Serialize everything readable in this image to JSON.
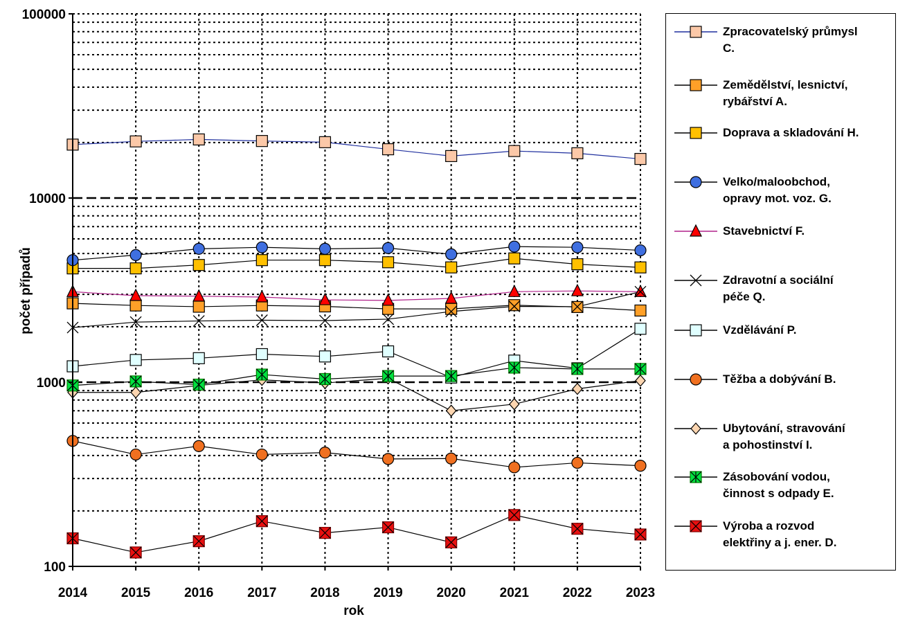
{
  "chart_data": {
    "type": "line",
    "xlabel": "rok",
    "ylabel": "počet případů",
    "yscale": "log",
    "ylim": [
      100,
      100000
    ],
    "yticks": [
      "100",
      "1000",
      "10000",
      "100000"
    ],
    "grid": true,
    "legend_position": "right",
    "categories": [
      "2014",
      "2015",
      "2016",
      "2017",
      "2018",
      "2019",
      "2020",
      "2021",
      "2022",
      "2023"
    ],
    "series": [
      {
        "name": "Zpracovatelský průmysl C.",
        "marker": "square",
        "color": "#fbc8a8",
        "line": "#1f2f9e",
        "values": [
          19500,
          20300,
          20800,
          20400,
          20100,
          18400,
          16900,
          18000,
          17500,
          16300
        ]
      },
      {
        "name": "Zemědělství, lesnictví, rybářství A.",
        "marker": "square",
        "color": "#ffa028",
        "line": "#000000",
        "values": [
          2680,
          2610,
          2570,
          2610,
          2580,
          2500,
          2500,
          2620,
          2560,
          2450
        ]
      },
      {
        "name": "Doprava a skladování H.",
        "marker": "square",
        "color": "#ffc000",
        "line": "#000000",
        "values": [
          4150,
          4150,
          4330,
          4600,
          4600,
          4480,
          4200,
          4700,
          4370,
          4200
        ]
      },
      {
        "name": "Velko/maloobchod, opravy mot. voz. G.",
        "marker": "circle",
        "color": "#3f6fe0",
        "line": "#000000",
        "values": [
          4600,
          4900,
          5300,
          5400,
          5300,
          5350,
          4950,
          5450,
          5400,
          5200
        ]
      },
      {
        "name": "Stavebnictví F.",
        "marker": "triangle",
        "color": "#ff0000",
        "line": "#b0208a",
        "values": [
          3100,
          2950,
          2930,
          2900,
          2800,
          2780,
          2850,
          3100,
          3130,
          3100
        ]
      },
      {
        "name": "Zdravotní a sociální péče Q.",
        "marker": "x",
        "color": "#d8f5d8",
        "line": "#000000",
        "values": [
          1980,
          2120,
          2150,
          2170,
          2160,
          2200,
          2420,
          2580,
          2570,
          3100
        ]
      },
      {
        "name": "Vzdělávání P.",
        "marker": "square",
        "color": "#e0ffff",
        "line": "#000000",
        "values": [
          1220,
          1320,
          1350,
          1420,
          1380,
          1470,
          1060,
          1310,
          1190,
          1950
        ]
      },
      {
        "name": "Těžba a dobývání B.",
        "marker": "circle",
        "color": "#f07020",
        "line": "#000000",
        "values": [
          480,
          405,
          450,
          405,
          415,
          383,
          385,
          345,
          365,
          352
        ]
      },
      {
        "name": "Ubytování, stravování a pohostinství I.",
        "marker": "diamond",
        "color": "#fcd5b0",
        "line": "#000000",
        "values": [
          880,
          880,
          960,
          1030,
          990,
          1050,
          700,
          760,
          920,
          1020
        ]
      },
      {
        "name": "Zásobování vodou, činnost s odpady E.",
        "marker": "asterisk-square",
        "color": "#00e040",
        "line": "#000000",
        "values": [
          960,
          1010,
          970,
          1100,
          1040,
          1080,
          1080,
          1200,
          1180,
          1180
        ]
      },
      {
        "name": "Výroba a rozvod elektřiny a j. ener. D.",
        "marker": "x-square",
        "color": "#e81010",
        "line": "#000000",
        "values": [
          142,
          119,
          137,
          176,
          152,
          163,
          135,
          190,
          160,
          149
        ]
      }
    ]
  },
  "legend": {
    "items": [
      {
        "line1": "Zpracovatelský průmysl",
        "line2": "C."
      },
      {
        "line1": "Zemědělství, lesnictví,",
        "line2": "rybářství A."
      },
      {
        "line1": "Doprava a skladování H.",
        "line2": ""
      },
      {
        "line1": "Velko/maloobchod,",
        "line2": "opravy mot. voz. G."
      },
      {
        "line1": "Stavebnictví F.",
        "line2": ""
      },
      {
        "line1": "Zdravotní a sociální",
        "line2": "péče Q."
      },
      {
        "line1": "Vzdělávání P.",
        "line2": ""
      },
      {
        "line1": "Těžba a dobývání B.",
        "line2": ""
      },
      {
        "line1": "Ubytování, stravování",
        "line2": "a pohostinství I."
      },
      {
        "line1": "Zásobování vodou,",
        "line2": "činnost s odpady E."
      },
      {
        "line1": "Výroba a rozvod",
        "line2": "elektřiny a j. ener. D."
      }
    ]
  }
}
